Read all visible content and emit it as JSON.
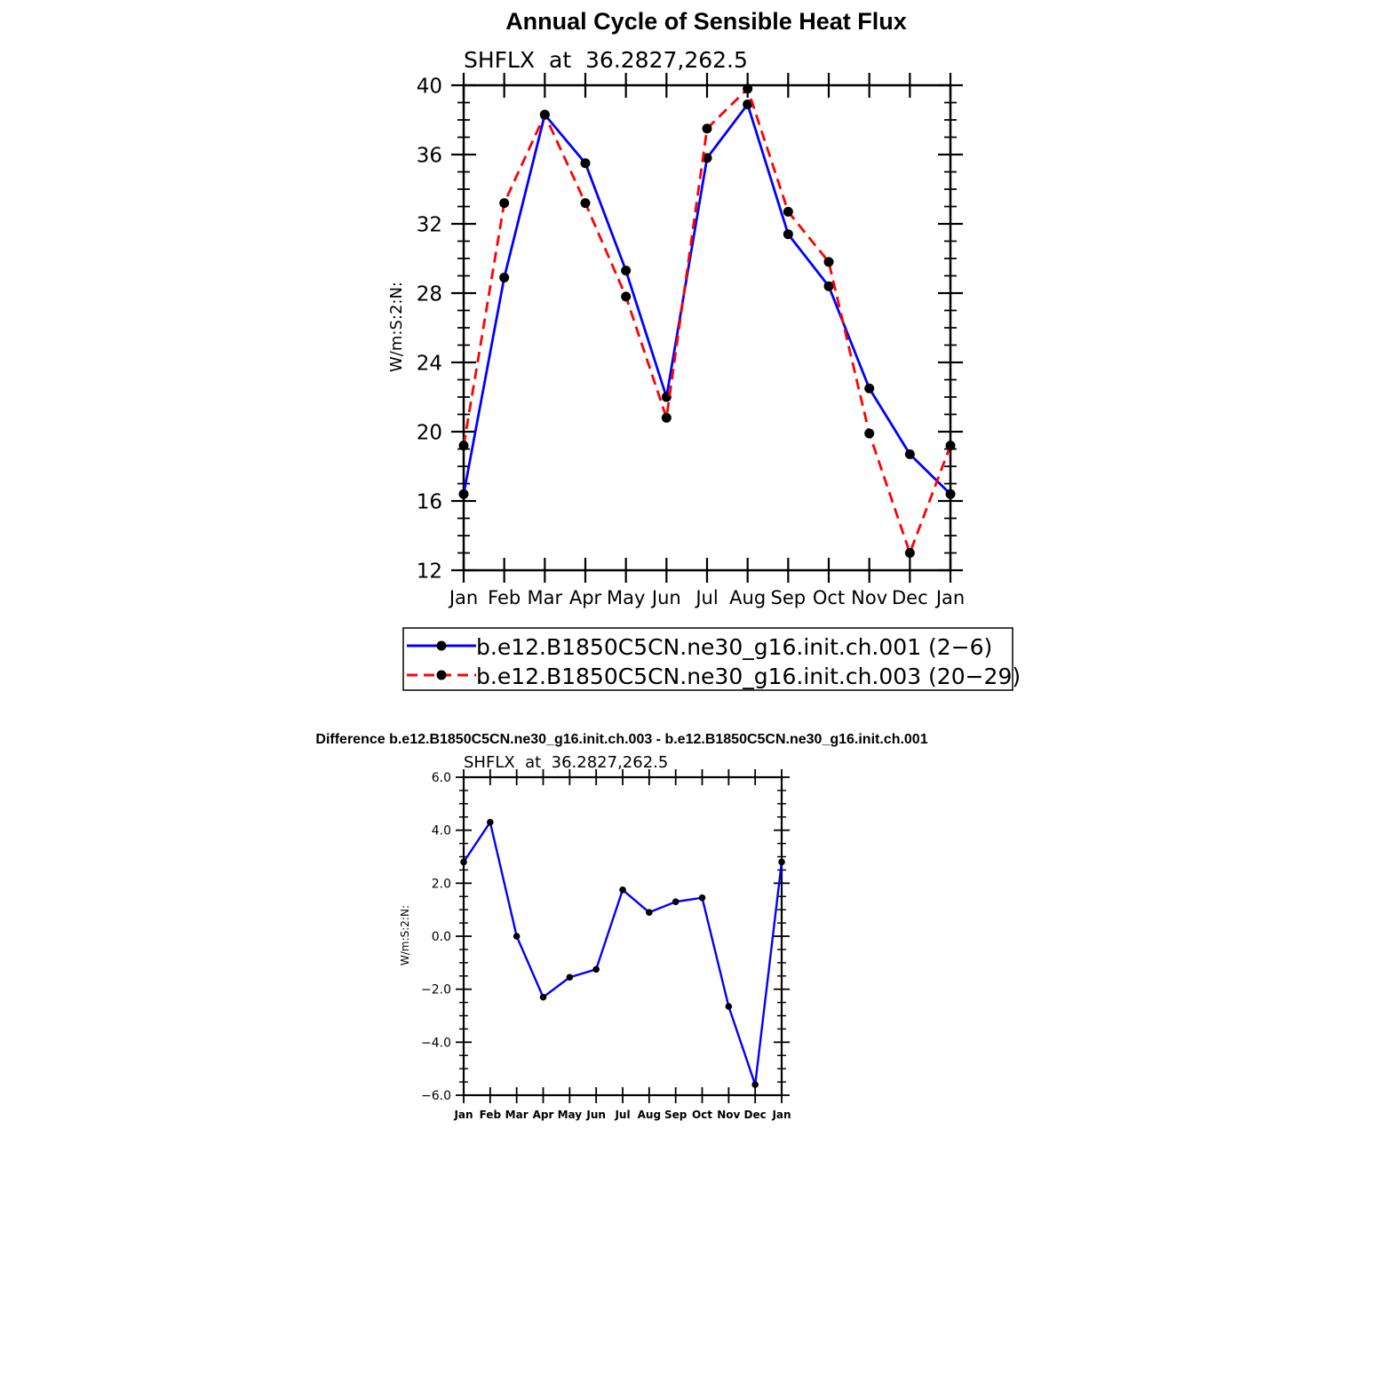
{
  "chart_data": [
    {
      "type": "line",
      "title": "Annual Cycle of Sensible Heat Flux",
      "subtitle": "SHFLX  at  36.2827,262.5",
      "ylabel": "W/m:S:2:N:",
      "xlabel": "",
      "categories": [
        "Jan",
        "Feb",
        "Mar",
        "Apr",
        "May",
        "Jun",
        "Jul",
        "Aug",
        "Sep",
        "Oct",
        "Nov",
        "Dec",
        "Jan"
      ],
      "ylim": [
        12,
        40
      ],
      "yticks": [
        "12",
        "16",
        "20",
        "24",
        "28",
        "32",
        "36",
        "40"
      ],
      "series": [
        {
          "name": "b.e12.B1850C5CN.ne30_g16.init.ch.001 (2−6)",
          "color": "#0000ff",
          "dash": "solid",
          "values": [
            16.4,
            28.9,
            38.3,
            35.5,
            29.3,
            22.0,
            35.8,
            38.9,
            31.4,
            28.4,
            22.5,
            18.7,
            16.4
          ]
        },
        {
          "name": "b.e12.B1850C5CN.ne30_g16.init.ch.003 (20−29)",
          "color": "#ff0000",
          "dash": "dashed",
          "values": [
            19.2,
            33.2,
            38.3,
            33.2,
            27.8,
            20.8,
            37.5,
            39.8,
            32.7,
            29.8,
            19.9,
            13.0,
            19.2
          ]
        }
      ],
      "legend": "below",
      "grid": false
    },
    {
      "type": "line",
      "title": "Difference b.e12.B1850C5CN.ne30_g16.init.ch.003 - b.e12.B1850C5CN.ne30_g16.init.ch.001",
      "subtitle": "SHFLX  at  36.2827,262.5",
      "ylabel": "W/m:S:2:N:",
      "xlabel": "",
      "categories": [
        "Jan",
        "Feb",
        "Mar",
        "Apr",
        "May",
        "Jun",
        "Jul",
        "Aug",
        "Sep",
        "Oct",
        "Nov",
        "Dec",
        "Jan"
      ],
      "ylim": [
        -6,
        6
      ],
      "yticks": [
        "−6.0",
        "−4.0",
        "−2.0",
        "0.0",
        "2.0",
        "4.0",
        "6.0"
      ],
      "series": [
        {
          "color": "#0000ff",
          "dash": "solid",
          "values": [
            2.8,
            4.3,
            0.0,
            -2.3,
            -1.55,
            -1.25,
            1.75,
            0.9,
            1.3,
            1.45,
            -2.65,
            -5.6,
            2.8
          ]
        }
      ],
      "grid": false
    }
  ]
}
